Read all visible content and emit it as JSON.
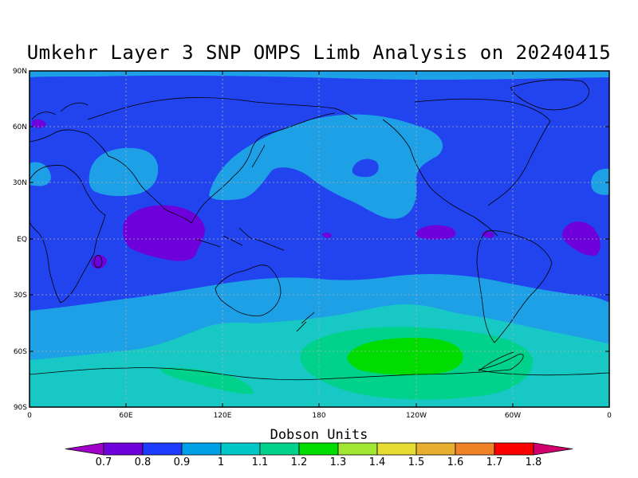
{
  "title": "Umkehr Layer 3 SNP OMPS Limb Analysis on 20240415",
  "map": {
    "projection": "equirectangular",
    "lat_labels": [
      "90N",
      "60N",
      "30N",
      "EQ",
      "30S",
      "60S",
      "90S"
    ],
    "lon_labels": [
      "0",
      "60E",
      "120E",
      "180",
      "120W",
      "60W",
      "0"
    ],
    "grid": true
  },
  "colorbar": {
    "title": "Dobson Units",
    "labels": [
      "0.7",
      "0.8",
      "0.9",
      "1",
      "1.1",
      "1.2",
      "1.3",
      "1.4",
      "1.5",
      "1.6",
      "1.7",
      "1.8"
    ],
    "colors": [
      "#a000c8",
      "#6e00dc",
      "#1e3cff",
      "#00a0e6",
      "#00c8c8",
      "#00d28c",
      "#00dc00",
      "#a0e632",
      "#e6dc32",
      "#e6af2d",
      "#f08228",
      "#fa0000",
      "#d2006e"
    ]
  }
}
